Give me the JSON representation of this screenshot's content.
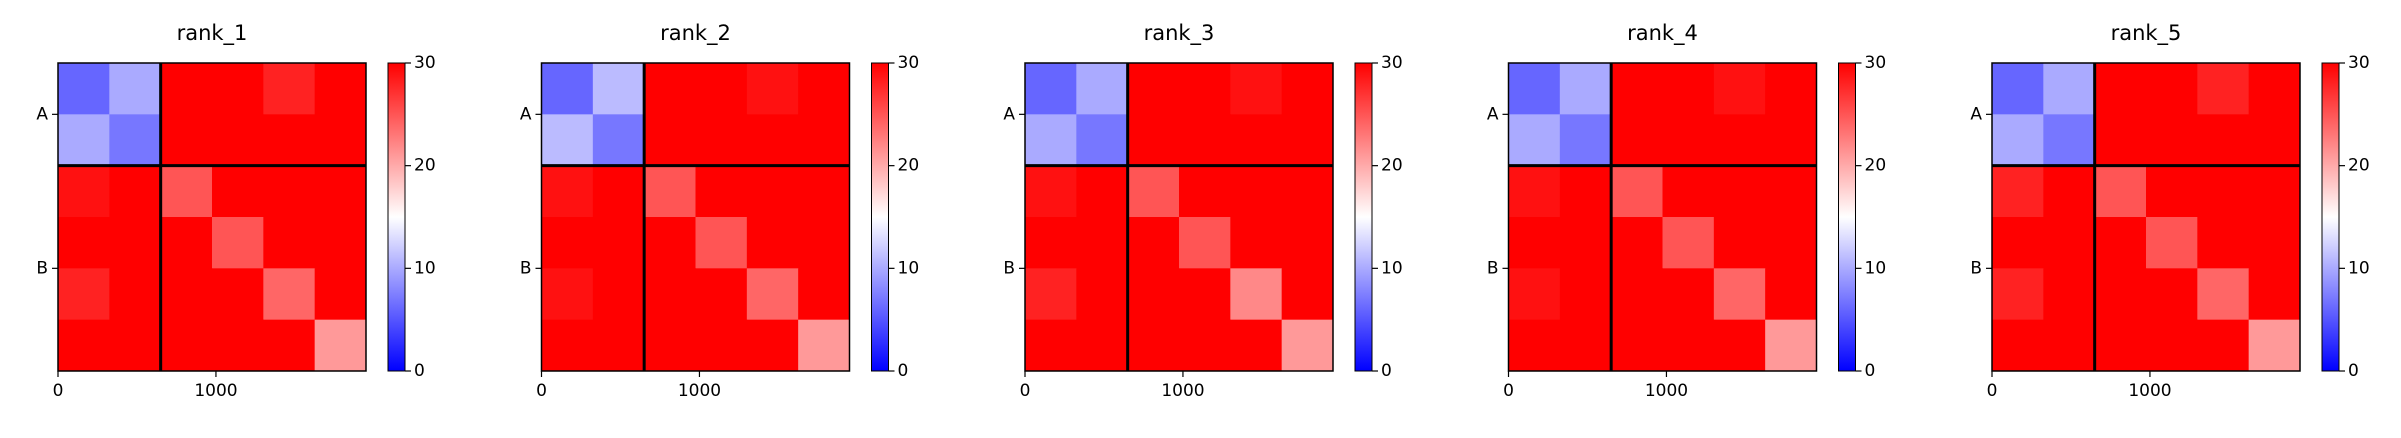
{
  "chart_data": [
    {
      "type": "heatmap",
      "title": "rank_1",
      "xlim": [
        0,
        1950
      ],
      "ylim": [
        0,
        1950
      ],
      "xticks": [
        0,
        1000
      ],
      "yticks": [
        {
          "value": 325,
          "label": "A"
        },
        {
          "value": 1300,
          "label": "B"
        }
      ],
      "chain_boundaries": [
        650
      ],
      "clim": [
        0,
        30
      ],
      "cticks": [
        0,
        10,
        20,
        30
      ],
      "cmap": [
        "#0000ff",
        "#ffffff",
        "#ff0000"
      ],
      "matrix": [
        [
          6,
          10,
          30,
          30,
          28,
          30
        ],
        [
          10,
          7,
          30,
          30,
          30,
          30
        ],
        [
          29,
          30,
          25,
          30,
          30,
          30
        ],
        [
          30,
          30,
          30,
          25,
          30,
          30
        ],
        [
          28,
          30,
          30,
          30,
          24,
          30
        ],
        [
          30,
          30,
          30,
          30,
          30,
          21
        ]
      ]
    },
    {
      "type": "heatmap",
      "title": "rank_2",
      "xlim": [
        0,
        1950
      ],
      "ylim": [
        0,
        1950
      ],
      "xticks": [
        0,
        1000
      ],
      "yticks": [
        {
          "value": 325,
          "label": "A"
        },
        {
          "value": 1300,
          "label": "B"
        }
      ],
      "chain_boundaries": [
        650
      ],
      "clim": [
        0,
        30
      ],
      "cticks": [
        0,
        10,
        20,
        30
      ],
      "cmap": [
        "#0000ff",
        "#ffffff",
        "#ff0000"
      ],
      "matrix": [
        [
          6,
          11,
          30,
          30,
          29,
          30
        ],
        [
          11,
          7,
          30,
          30,
          30,
          30
        ],
        [
          29,
          30,
          25,
          30,
          30,
          30
        ],
        [
          30,
          30,
          30,
          25,
          30,
          30
        ],
        [
          29,
          30,
          30,
          30,
          24,
          30
        ],
        [
          30,
          30,
          30,
          30,
          30,
          21
        ]
      ]
    },
    {
      "type": "heatmap",
      "title": "rank_3",
      "xlim": [
        0,
        1950
      ],
      "ylim": [
        0,
        1950
      ],
      "xticks": [
        0,
        1000
      ],
      "yticks": [
        {
          "value": 325,
          "label": "A"
        },
        {
          "value": 1300,
          "label": "B"
        }
      ],
      "chain_boundaries": [
        650
      ],
      "clim": [
        0,
        30
      ],
      "cticks": [
        0,
        10,
        20,
        30
      ],
      "cmap": [
        "#0000ff",
        "#ffffff",
        "#ff0000"
      ],
      "matrix": [
        [
          6,
          10,
          30,
          30,
          29,
          30
        ],
        [
          10,
          7,
          30,
          30,
          30,
          30
        ],
        [
          29,
          30,
          25,
          30,
          30,
          30
        ],
        [
          30,
          30,
          30,
          25,
          30,
          30
        ],
        [
          28,
          30,
          30,
          30,
          22,
          30
        ],
        [
          30,
          30,
          30,
          30,
          30,
          21
        ]
      ]
    },
    {
      "type": "heatmap",
      "title": "rank_4",
      "xlim": [
        0,
        1950
      ],
      "ylim": [
        0,
        1950
      ],
      "xticks": [
        0,
        1000
      ],
      "yticks": [
        {
          "value": 325,
          "label": "A"
        },
        {
          "value": 1300,
          "label": "B"
        }
      ],
      "chain_boundaries": [
        650
      ],
      "clim": [
        0,
        30
      ],
      "cticks": [
        0,
        10,
        20,
        30
      ],
      "cmap": [
        "#0000ff",
        "#ffffff",
        "#ff0000"
      ],
      "matrix": [
        [
          6,
          10,
          30,
          30,
          29,
          30
        ],
        [
          10,
          7,
          30,
          30,
          30,
          30
        ],
        [
          29,
          30,
          25,
          30,
          30,
          30
        ],
        [
          30,
          30,
          30,
          25,
          30,
          30
        ],
        [
          29,
          30,
          30,
          30,
          24,
          30
        ],
        [
          30,
          30,
          30,
          30,
          30,
          21
        ]
      ]
    },
    {
      "type": "heatmap",
      "title": "rank_5",
      "xlim": [
        0,
        1950
      ],
      "ylim": [
        0,
        1950
      ],
      "xticks": [
        0,
        1000
      ],
      "yticks": [
        {
          "value": 325,
          "label": "A"
        },
        {
          "value": 1300,
          "label": "B"
        }
      ],
      "chain_boundaries": [
        650
      ],
      "clim": [
        0,
        30
      ],
      "cticks": [
        0,
        10,
        20,
        30
      ],
      "cmap": [
        "#0000ff",
        "#ffffff",
        "#ff0000"
      ],
      "matrix": [
        [
          6,
          10,
          30,
          30,
          28,
          30
        ],
        [
          10,
          7,
          30,
          30,
          30,
          30
        ],
        [
          28,
          30,
          25,
          30,
          30,
          30
        ],
        [
          30,
          30,
          30,
          25,
          30,
          30
        ],
        [
          28,
          30,
          30,
          30,
          24,
          30
        ],
        [
          30,
          30,
          30,
          30,
          30,
          21
        ]
      ]
    }
  ]
}
